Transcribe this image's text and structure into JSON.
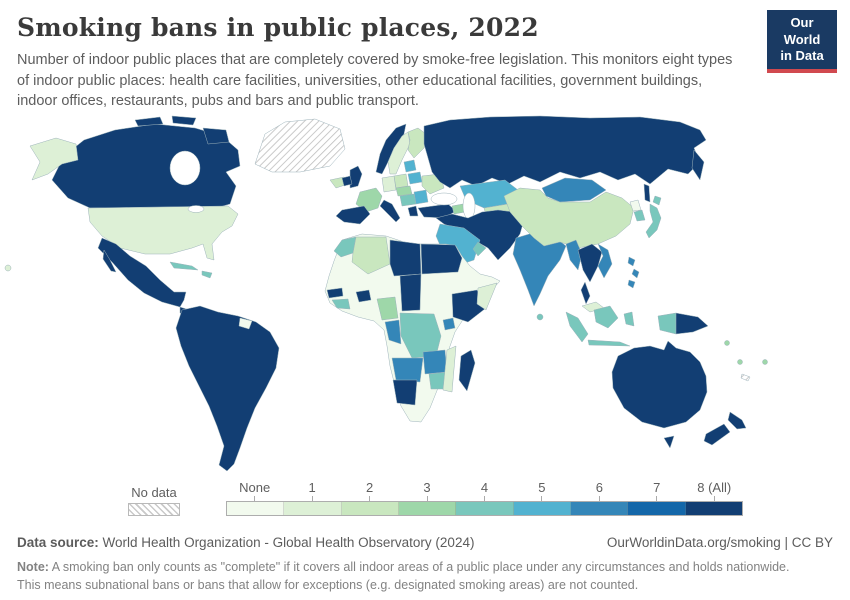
{
  "header": {
    "title": "Smoking bans in public places, 2022",
    "subtitle_lines": [
      "Number of indoor public places that are completely covered by smoke-free legislation. This monitors eight types",
      "of indoor public places: health care facilities, universities, other educational facilities, government buildings,",
      "indoor offices, restaurants, pubs and bars and public transport."
    ],
    "logo": {
      "line1": "Our World",
      "line2": "in Data",
      "bg": "#1a3a63",
      "accent": "#d1494f"
    }
  },
  "legend": {
    "no_data_label": "No data",
    "bins": [
      {
        "label": "None",
        "color": "#f2faee"
      },
      {
        "label": "1",
        "color": "#ddf0d6"
      },
      {
        "label": "2",
        "color": "#c9e7bf"
      },
      {
        "label": "3",
        "color": "#9ed7a9"
      },
      {
        "label": "4",
        "color": "#79c7bc"
      },
      {
        "label": "5",
        "color": "#52b2d0"
      },
      {
        "label": "6",
        "color": "#3486b8"
      },
      {
        "label": "7",
        "color": "#1467a9"
      },
      {
        "label": "8 (All)",
        "color": "#123e73"
      }
    ]
  },
  "footer": {
    "datasource_label": "Data source:",
    "datasource_text": " World Health Organization - Global Health Observatory (2024)",
    "link_text": "OurWorldinData.org/smoking | CC BY",
    "note_label": "Note:",
    "note_line1": " A smoking ban only counts as \"complete\" if it covers all indoor areas of a public place under any circumstances and holds nationwide.",
    "note_line2": "This means subnational bans or bans that allow for exceptions (e.g. designated smoking areas) are not counted."
  },
  "chart_data": {
    "type": "heatmap",
    "subtype": "world-choropleth",
    "title": "Smoking bans in public places, 2022",
    "value_unit": "number of indoor public place types fully covered by smoke-free legislation (0 = None to 8 = All)",
    "bins": [
      "None",
      "1",
      "2",
      "3",
      "4",
      "5",
      "6",
      "7",
      "8 (All)"
    ],
    "bin_colors": [
      "#f2faee",
      "#ddf0d6",
      "#c9e7bf",
      "#9ed7a9",
      "#79c7bc",
      "#52b2d0",
      "#3486b8",
      "#1467a9",
      "#123e73"
    ],
    "no_data_style": "diagonal-hatch",
    "readings": {
      "greenland": "no-data",
      "new-caledonia": "no-data",
      "canada": 8,
      "alaska": 1,
      "usa": 1,
      "hawaii": 1,
      "mexico": 8,
      "central-america": 8,
      "nicaragua": 5,
      "cuba": 4,
      "hispaniola": 4,
      "south-america": 8,
      "guyana": 0,
      "iceland": 2,
      "norway": 8,
      "sweden": 1,
      "finland": 2,
      "baltics": 5,
      "belarus": 5,
      "uk": 8,
      "ireland": 8,
      "france": 3,
      "germany": 1,
      "poland": 2,
      "ukraine": 2,
      "iberia": 8,
      "italy": 8,
      "czech-austria": 3,
      "hungary-balkans": 4,
      "romania": 5,
      "greece": 8,
      "turkey": 8,
      "caucasus": 3,
      "russia": 8,
      "kazakhstan": 5,
      "central-asia": 2,
      "iran-region": 8,
      "saudi-arabia": 5,
      "yemen": 1,
      "oman": 4,
      "india": 6,
      "sri-lanka": 4,
      "china": 2,
      "mongolia": 6,
      "north-korea": 0,
      "south-korea": 4,
      "japan": 4,
      "myanmar": 6,
      "thailand-laos": 8,
      "vietnam": 6,
      "malaysia": 1,
      "philippines": 6,
      "indonesia": 4,
      "papua-new-guinea": 8,
      "australia": 8,
      "new-zealand": 8,
      "pacific-islands": 3,
      "morocco": 4,
      "algeria": 2,
      "libya": 8,
      "egypt": 8,
      "senegal": 8,
      "guinea": 4,
      "burkina-faso": 8,
      "nigeria": 3,
      "chad": 8,
      "ethiopia": 8,
      "somalia": 1,
      "uganda": 6,
      "drc": 4,
      "gabon-congo": 6,
      "angola": 6,
      "zambia": 6,
      "zimbabwe": 4,
      "mozambique": 1,
      "namibia": 8,
      "madagascar": 8,
      "africa-other": 0
    }
  }
}
